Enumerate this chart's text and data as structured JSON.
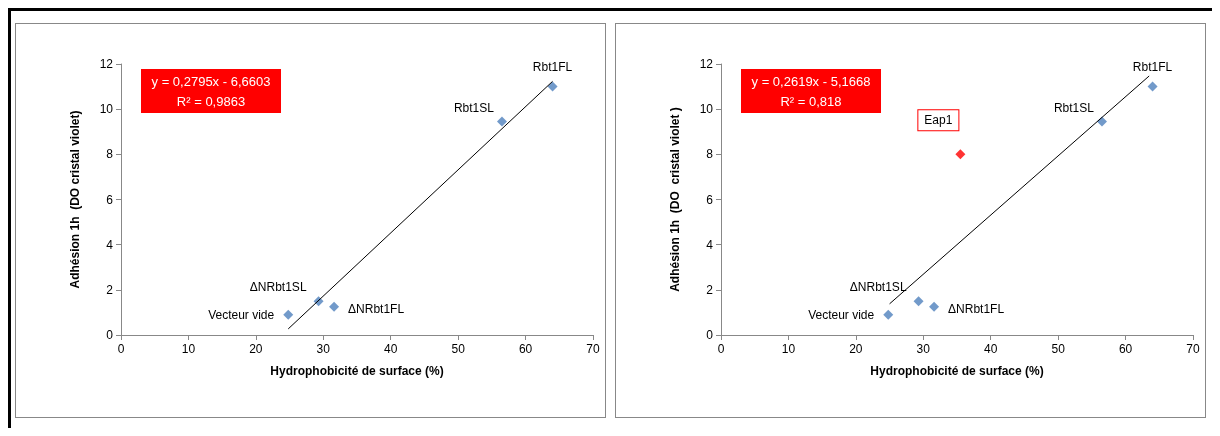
{
  "chart_data": [
    {
      "type": "scatter",
      "xlabel": "Hydrophobicité de surface (%)",
      "ylabel": "Adhésion 1h  (DO cristal violet)",
      "xlim": [
        0,
        70
      ],
      "xticks": [
        0,
        10,
        20,
        30,
        40,
        50,
        60,
        70
      ],
      "ylim": [
        0,
        12
      ],
      "yticks": [
        0,
        2,
        4,
        6,
        8,
        10,
        12
      ],
      "grid": false,
      "marker": "diamond",
      "series": [
        {
          "color": "#4f81bd",
          "x": [
            24.8,
            29.3,
            31.6,
            56.5,
            64
          ],
          "values": [
            0.9,
            1.5,
            1.25,
            9.45,
            11.0
          ]
        },
        {
          "type": "line",
          "marker": "none",
          "color": "#000000",
          "x": [
            24.8,
            64
          ],
          "values": [
            0.27,
            11.23
          ]
        }
      ],
      "annotations": [
        "y = 0,2795x - 6,6603\nR² = 0,9863",
        {
          "text": "Vecteur vide",
          "x": 24.8,
          "y": 0.9
        },
        {
          "text": "ΔNRbt1SL",
          "x": 29.3,
          "y": 1.5
        },
        {
          "text": "ΔNRbt1FL",
          "x": 31.6,
          "y": 1.25
        },
        {
          "text": "Rbt1SL",
          "x": 56.5,
          "y": 9.45
        },
        {
          "text": "Rbt1FL",
          "x": 64,
          "y": 11.0
        }
      ]
    },
    {
      "type": "scatter",
      "xlabel": "Hydrophobicité de surface (%)",
      "ylabel": "Adhésion 1h  (DO  cristal violet )",
      "xlim": [
        0,
        70
      ],
      "xticks": [
        0,
        10,
        20,
        30,
        40,
        50,
        60,
        70
      ],
      "ylim": [
        0,
        12
      ],
      "yticks": [
        0,
        2,
        4,
        6,
        8,
        10,
        12
      ],
      "grid": false,
      "marker": "diamond",
      "series": [
        {
          "color": "#4f81bd",
          "x": [
            24.8,
            29.3,
            31.6,
            56.5,
            64
          ],
          "values": [
            0.9,
            1.5,
            1.25,
            9.45,
            11.0
          ]
        },
        {
          "color": "#ff0000",
          "x": [
            35.5
          ],
          "values": [
            8.0
          ]
        },
        {
          "type": "line",
          "marker": "none",
          "color": "#000000",
          "x": [
            25,
            63.5
          ],
          "values": [
            1.38,
            11.47
          ]
        }
      ],
      "annotations": [
        "y = 0,2619x - 5,1668\nR² = 0,818",
        {
          "text": "Vecteur vide",
          "x": 24.8,
          "y": 0.9
        },
        {
          "text": "ΔNRbt1SL",
          "x": 29.3,
          "y": 1.5
        },
        {
          "text": "ΔNRbt1FL",
          "x": 31.6,
          "y": 1.25
        },
        {
          "text": "Rbt1SL",
          "x": 56.5,
          "y": 9.45
        },
        {
          "text": "Rbt1FL",
          "x": 64,
          "y": 11.0
        },
        {
          "text": "Eap1",
          "x": 35.5,
          "y": 8.0
        }
      ]
    }
  ]
}
